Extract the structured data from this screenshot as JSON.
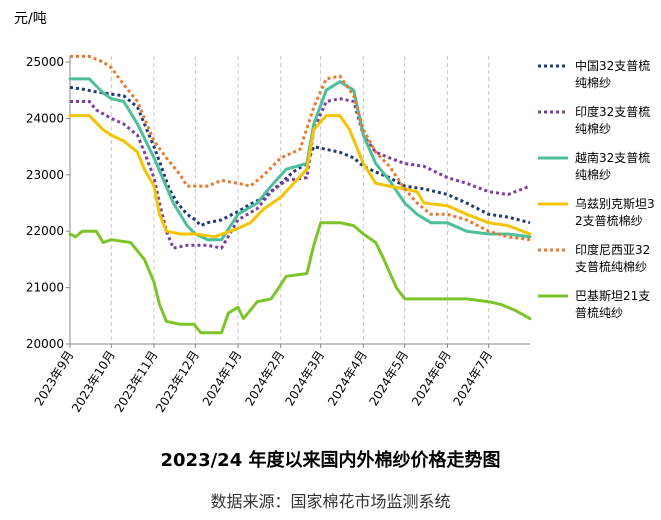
{
  "chart_data": {
    "type": "line",
    "title": "2023/24 年度以来国内外棉纱价格走势图",
    "source": "数据来源：国家棉花市场监测系统",
    "ylabel": "元/吨",
    "ylim": [
      20000,
      25000
    ],
    "yticks": [
      "20000",
      "21000",
      "22000",
      "23000",
      "24000",
      "25000"
    ],
    "xlim": [
      "2023-09-01",
      "2024-07-31"
    ],
    "xticks": [
      {
        "date": "2023-09-01",
        "label": "2023年9月"
      },
      {
        "date": "2023-10-01",
        "label": "2023年10月"
      },
      {
        "date": "2023-11-01",
        "label": "2023年11月"
      },
      {
        "date": "2023-12-01",
        "label": "2023年12月"
      },
      {
        "date": "2024-01-01",
        "label": "2024年1月"
      },
      {
        "date": "2024-02-01",
        "label": "2024年2月"
      },
      {
        "date": "2024-03-01",
        "label": "2024年3月"
      },
      {
        "date": "2024-04-01",
        "label": "2024年4月"
      },
      {
        "date": "2024-05-01",
        "label": "2024年5月"
      },
      {
        "date": "2024-06-01",
        "label": "2024年6月"
      },
      {
        "date": "2024-07-01",
        "label": "2024年7月"
      }
    ],
    "grid": "vertical-dashed",
    "legend_position": "right",
    "series": [
      {
        "name": "中国32支普梳纯棉纱",
        "color": "#1f3b73",
        "style": "dotted",
        "points": [
          [
            "2023-09-01",
            24550
          ],
          [
            "2023-09-10",
            24520
          ],
          [
            "2023-09-20",
            24470
          ],
          [
            "2023-10-01",
            24430
          ],
          [
            "2023-10-10",
            24400
          ],
          [
            "2023-10-20",
            24200
          ],
          [
            "2023-10-25",
            23900
          ],
          [
            "2023-11-01",
            23500
          ],
          [
            "2023-11-07",
            23100
          ],
          [
            "2023-11-12",
            22750
          ],
          [
            "2023-11-18",
            22500
          ],
          [
            "2023-11-25",
            22300
          ],
          [
            "2023-12-01",
            22200
          ],
          [
            "2023-12-05",
            22100
          ],
          [
            "2023-12-10",
            22150
          ],
          [
            "2023-12-20",
            22200
          ],
          [
            "2024-01-01",
            22350
          ],
          [
            "2024-01-10",
            22480
          ],
          [
            "2024-01-20",
            22600
          ],
          [
            "2024-02-01",
            22850
          ],
          [
            "2024-02-10",
            23050
          ],
          [
            "2024-02-20",
            23200
          ],
          [
            "2024-02-25",
            23500
          ],
          [
            "2024-03-05",
            23450
          ],
          [
            "2024-03-15",
            23400
          ],
          [
            "2024-03-25",
            23300
          ],
          [
            "2024-04-01",
            23150
          ],
          [
            "2024-04-10",
            23050
          ],
          [
            "2024-04-20",
            22950
          ],
          [
            "2024-05-01",
            22800
          ],
          [
            "2024-05-15",
            22750
          ],
          [
            "2024-06-01",
            22650
          ],
          [
            "2024-06-15",
            22500
          ],
          [
            "2024-07-01",
            22300
          ],
          [
            "2024-07-15",
            22250
          ],
          [
            "2024-07-31",
            22150
          ]
        ]
      },
      {
        "name": "印度32支普梳纯棉纱",
        "color": "#7b3fa0",
        "style": "dotted",
        "points": [
          [
            "2023-09-01",
            24300
          ],
          [
            "2023-09-15",
            24300
          ],
          [
            "2023-09-20",
            24150
          ],
          [
            "2023-10-01",
            24000
          ],
          [
            "2023-10-10",
            23900
          ],
          [
            "2023-10-20",
            23700
          ],
          [
            "2023-10-25",
            23400
          ],
          [
            "2023-11-01",
            22950
          ],
          [
            "2023-11-05",
            22500
          ],
          [
            "2023-11-10",
            22000
          ],
          [
            "2023-11-15",
            21700
          ],
          [
            "2023-11-25",
            21750
          ],
          [
            "2023-12-10",
            21750
          ],
          [
            "2023-12-20",
            21700
          ],
          [
            "2024-01-01",
            22200
          ],
          [
            "2024-01-15",
            22400
          ],
          [
            "2024-01-25",
            22700
          ],
          [
            "2024-02-05",
            22900
          ],
          [
            "2024-02-20",
            22950
          ],
          [
            "2024-02-25",
            23800
          ],
          [
            "2024-03-05",
            24300
          ],
          [
            "2024-03-15",
            24350
          ],
          [
            "2024-03-25",
            24300
          ],
          [
            "2024-04-01",
            23700
          ],
          [
            "2024-04-10",
            23400
          ],
          [
            "2024-04-20",
            23300
          ],
          [
            "2024-05-01",
            23200
          ],
          [
            "2024-05-15",
            23150
          ],
          [
            "2024-06-01",
            22950
          ],
          [
            "2024-06-15",
            22850
          ],
          [
            "2024-07-01",
            22700
          ],
          [
            "2024-07-15",
            22650
          ],
          [
            "2024-07-31",
            22800
          ]
        ]
      },
      {
        "name": "越南32支普梳纯棉纱",
        "color": "#4dbf9b",
        "style": "solid",
        "points": [
          [
            "2023-09-01",
            24700
          ],
          [
            "2023-09-15",
            24700
          ],
          [
            "2023-09-25",
            24450
          ],
          [
            "2023-10-01",
            24350
          ],
          [
            "2023-10-10",
            24300
          ],
          [
            "2023-10-20",
            23900
          ],
          [
            "2023-11-01",
            23300
          ],
          [
            "2023-11-08",
            22900
          ],
          [
            "2023-11-15",
            22500
          ],
          [
            "2023-11-25",
            22100
          ],
          [
            "2023-12-01",
            21950
          ],
          [
            "2023-12-10",
            21850
          ],
          [
            "2023-12-20",
            21850
          ],
          [
            "2024-01-01",
            22300
          ],
          [
            "2024-01-15",
            22500
          ],
          [
            "2024-01-25",
            22800
          ],
          [
            "2024-02-05",
            23100
          ],
          [
            "2024-02-20",
            23200
          ],
          [
            "2024-02-25",
            23900
          ],
          [
            "2024-03-05",
            24500
          ],
          [
            "2024-03-15",
            24650
          ],
          [
            "2024-03-25",
            24500
          ],
          [
            "2024-04-01",
            23700
          ],
          [
            "2024-04-10",
            23200
          ],
          [
            "2024-04-20",
            22900
          ],
          [
            "2024-05-01",
            22500
          ],
          [
            "2024-05-10",
            22300
          ],
          [
            "2024-05-20",
            22150
          ],
          [
            "2024-06-01",
            22150
          ],
          [
            "2024-06-15",
            22000
          ],
          [
            "2024-07-01",
            21950
          ],
          [
            "2024-07-15",
            21950
          ],
          [
            "2024-07-31",
            21900
          ]
        ]
      },
      {
        "name": "乌兹别克斯坦32支普梳棉纱",
        "color": "#f5c400",
        "style": "solid",
        "points": [
          [
            "2023-09-01",
            24050
          ],
          [
            "2023-09-15",
            24050
          ],
          [
            "2023-09-25",
            23800
          ],
          [
            "2023-10-01",
            23700
          ],
          [
            "2023-10-10",
            23600
          ],
          [
            "2023-10-20",
            23400
          ],
          [
            "2023-10-25",
            23100
          ],
          [
            "2023-11-01",
            22800
          ],
          [
            "2023-11-05",
            22300
          ],
          [
            "2023-11-10",
            22000
          ],
          [
            "2023-11-20",
            21950
          ],
          [
            "2023-12-01",
            21950
          ],
          [
            "2023-12-15",
            21900
          ],
          [
            "2024-01-01",
            22050
          ],
          [
            "2024-01-10",
            22150
          ],
          [
            "2024-01-20",
            22400
          ],
          [
            "2024-02-01",
            22600
          ],
          [
            "2024-02-20",
            23100
          ],
          [
            "2024-02-25",
            23800
          ],
          [
            "2024-03-05",
            24050
          ],
          [
            "2024-03-15",
            24050
          ],
          [
            "2024-03-22",
            23800
          ],
          [
            "2024-04-01",
            23200
          ],
          [
            "2024-04-10",
            22850
          ],
          [
            "2024-04-20",
            22800
          ],
          [
            "2024-05-01",
            22750
          ],
          [
            "2024-05-10",
            22700
          ],
          [
            "2024-05-15",
            22500
          ],
          [
            "2024-06-01",
            22450
          ],
          [
            "2024-06-15",
            22300
          ],
          [
            "2024-07-01",
            22150
          ],
          [
            "2024-07-15",
            22100
          ],
          [
            "2024-07-31",
            21950
          ]
        ]
      },
      {
        "name": "印度尼西亚32支普梳纯棉纱",
        "color": "#e8792d",
        "style": "dotted",
        "points": [
          [
            "2023-09-01",
            25100
          ],
          [
            "2023-09-15",
            25100
          ],
          [
            "2023-09-25",
            25000
          ],
          [
            "2023-10-01",
            24900
          ],
          [
            "2023-10-10",
            24600
          ],
          [
            "2023-10-20",
            24300
          ],
          [
            "2023-10-25",
            24000
          ],
          [
            "2023-11-01",
            23600
          ],
          [
            "2023-11-10",
            23300
          ],
          [
            "2023-11-20",
            23000
          ],
          [
            "2023-11-25",
            22800
          ],
          [
            "2023-12-10",
            22800
          ],
          [
            "2023-12-20",
            22900
          ],
          [
            "2024-01-01",
            22850
          ],
          [
            "2024-01-10",
            22800
          ],
          [
            "2024-01-20",
            23000
          ],
          [
            "2024-02-01",
            23300
          ],
          [
            "2024-02-15",
            23450
          ],
          [
            "2024-02-25",
            24200
          ],
          [
            "2024-03-05",
            24700
          ],
          [
            "2024-03-15",
            24750
          ],
          [
            "2024-03-25",
            24400
          ],
          [
            "2024-04-01",
            23800
          ],
          [
            "2024-04-10",
            23400
          ],
          [
            "2024-04-20",
            23150
          ],
          [
            "2024-05-01",
            22750
          ],
          [
            "2024-05-10",
            22500
          ],
          [
            "2024-05-20",
            22300
          ],
          [
            "2024-06-01",
            22300
          ],
          [
            "2024-06-15",
            22200
          ],
          [
            "2024-07-01",
            22000
          ],
          [
            "2024-07-15",
            21900
          ],
          [
            "2024-07-31",
            21850
          ]
        ]
      },
      {
        "name": "巴基斯坦21支普梳纯纱",
        "color": "#7dc42a",
        "style": "solid",
        "points": [
          [
            "2023-09-01",
            21950
          ],
          [
            "2023-09-05",
            21900
          ],
          [
            "2023-09-10",
            22000
          ],
          [
            "2023-09-20",
            22000
          ],
          [
            "2023-09-25",
            21800
          ],
          [
            "2023-10-01",
            21850
          ],
          [
            "2023-10-15",
            21800
          ],
          [
            "2023-10-25",
            21500
          ],
          [
            "2023-11-01",
            21100
          ],
          [
            "2023-11-05",
            20700
          ],
          [
            "2023-11-10",
            20400
          ],
          [
            "2023-11-20",
            20350
          ],
          [
            "2023-11-30",
            20350
          ],
          [
            "2023-12-05",
            20200
          ],
          [
            "2023-12-15",
            20200
          ],
          [
            "2023-12-20",
            20200
          ],
          [
            "2023-12-25",
            20550
          ],
          [
            "2024-01-01",
            20650
          ],
          [
            "2024-01-05",
            20450
          ],
          [
            "2024-01-10",
            20600
          ],
          [
            "2024-01-15",
            20750
          ],
          [
            "2024-01-25",
            20800
          ],
          [
            "2024-02-01",
            21050
          ],
          [
            "2024-02-05",
            21200
          ],
          [
            "2024-02-20",
            21250
          ],
          [
            "2024-02-25",
            21750
          ],
          [
            "2024-03-01",
            22150
          ],
          [
            "2024-03-15",
            22150
          ],
          [
            "2024-03-25",
            22100
          ],
          [
            "2024-04-01",
            21950
          ],
          [
            "2024-04-10",
            21800
          ],
          [
            "2024-04-15",
            21550
          ],
          [
            "2024-04-25",
            21000
          ],
          [
            "2024-05-01",
            20800
          ],
          [
            "2024-05-15",
            20800
          ],
          [
            "2024-06-01",
            20800
          ],
          [
            "2024-06-15",
            20800
          ],
          [
            "2024-07-01",
            20750
          ],
          [
            "2024-07-10",
            20700
          ],
          [
            "2024-07-20",
            20600
          ],
          [
            "2024-07-31",
            20450
          ]
        ]
      }
    ]
  }
}
